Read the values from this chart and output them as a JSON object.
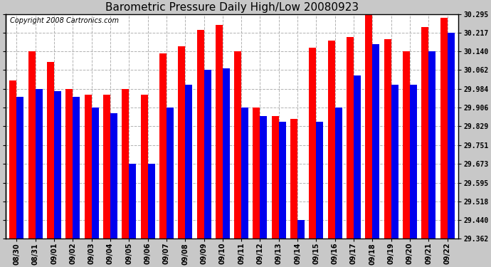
{
  "title": "Barometric Pressure Daily High/Low 20080923",
  "copyright": "Copyright 2008 Cartronics.com",
  "dates": [
    "08/30",
    "08/31",
    "09/01",
    "09/02",
    "09/03",
    "09/04",
    "09/05",
    "09/06",
    "09/07",
    "09/08",
    "09/09",
    "09/10",
    "09/11",
    "09/12",
    "09/13",
    "09/14",
    "09/15",
    "09/16",
    "09/17",
    "09/18",
    "09/19",
    "09/20",
    "09/21",
    "09/22"
  ],
  "highs": [
    30.02,
    30.14,
    30.095,
    29.984,
    29.96,
    29.96,
    29.984,
    29.96,
    30.13,
    30.16,
    30.23,
    30.25,
    30.14,
    29.906,
    29.87,
    29.86,
    30.155,
    30.185,
    30.2,
    30.295,
    30.19,
    30.14,
    30.24,
    30.28
  ],
  "lows": [
    29.95,
    29.984,
    29.975,
    29.95,
    29.906,
    29.884,
    29.673,
    29.673,
    29.906,
    30.0,
    30.062,
    30.07,
    29.906,
    29.87,
    29.848,
    29.44,
    29.848,
    29.906,
    30.04,
    30.17,
    30.0,
    30.0,
    30.14,
    30.217
  ],
  "high_color": "#ff0000",
  "low_color": "#0000ee",
  "background_color": "#c8c8c8",
  "plot_background": "#ffffff",
  "grid_color": "#aaaaaa",
  "ylim_min": 29.362,
  "ylim_max": 30.295,
  "yticks": [
    29.362,
    29.44,
    29.518,
    29.595,
    29.673,
    29.751,
    29.829,
    29.906,
    29.984,
    30.062,
    30.14,
    30.217,
    30.295
  ],
  "title_fontsize": 11,
  "tick_fontsize": 7,
  "copyright_fontsize": 7,
  "bar_width": 0.38
}
